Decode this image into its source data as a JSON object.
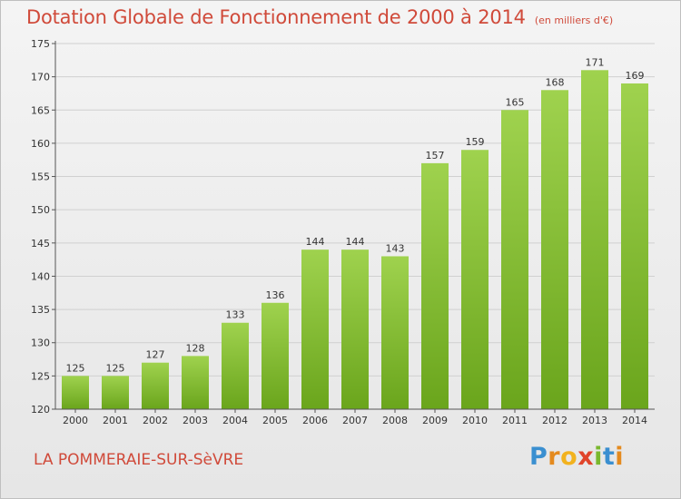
{
  "header": {
    "title": "Dotation Globale de Fonctionnement de 2000 à 2014",
    "subtitle": "(en milliers d'€)"
  },
  "footer": {
    "place": "LA POMMERAIE-SUR-SèVRE",
    "logo": "Proxiti"
  },
  "colors": {
    "title": "#d04a3a",
    "bar_light": "#9fd24e",
    "bar_dark": "#6aa51c",
    "grid": "#d0d0d0",
    "axis": "#555555"
  },
  "chart_data": {
    "type": "bar",
    "categories": [
      "2000",
      "2001",
      "2002",
      "2003",
      "2004",
      "2005",
      "2006",
      "2007",
      "2008",
      "2009",
      "2010",
      "2011",
      "2012",
      "2013",
      "2014"
    ],
    "values": [
      125,
      125,
      127,
      128,
      133,
      136,
      144,
      144,
      143,
      157,
      159,
      165,
      168,
      171,
      169
    ],
    "title": "Dotation Globale de Fonctionnement de 2000 à 2014",
    "subtitle": "(en milliers d'€)",
    "xlabel": "",
    "ylabel": "",
    "ylim": [
      120,
      175
    ],
    "yticks": [
      120,
      125,
      130,
      135,
      140,
      145,
      150,
      155,
      160,
      165,
      170,
      175
    ],
    "grid": true,
    "legend": "none"
  }
}
